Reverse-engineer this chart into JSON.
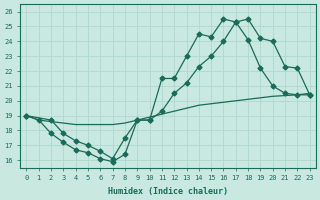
{
  "xlabel": "Humidex (Indice chaleur)",
  "xlim": [
    -0.5,
    23.5
  ],
  "ylim": [
    15.5,
    26.5
  ],
  "xticks": [
    0,
    1,
    2,
    3,
    4,
    5,
    6,
    7,
    8,
    9,
    10,
    11,
    12,
    13,
    14,
    15,
    16,
    17,
    18,
    19,
    20,
    21,
    22,
    23
  ],
  "yticks": [
    16,
    17,
    18,
    19,
    20,
    21,
    22,
    23,
    24,
    25,
    26
  ],
  "bg_color": "#c8e8e0",
  "grid_color": "#b0d8d0",
  "line_color": "#1a6b5a",
  "line1_x": [
    0,
    1,
    2,
    3,
    4,
    5,
    6,
    7,
    8,
    9,
    10,
    11,
    12,
    13,
    14,
    15,
    16,
    17,
    18,
    19,
    20,
    21,
    22,
    23
  ],
  "line1_y": [
    19.0,
    18.7,
    17.8,
    17.2,
    16.7,
    16.5,
    16.1,
    15.9,
    16.4,
    18.7,
    18.7,
    21.5,
    21.5,
    23.0,
    24.5,
    24.3,
    25.5,
    25.3,
    24.1,
    22.2,
    21.0,
    20.5,
    20.4,
    20.4
  ],
  "line2_x": [
    0,
    2,
    3,
    4,
    5,
    6,
    7,
    8,
    9,
    10,
    11,
    12,
    13,
    14,
    15,
    16,
    17,
    18,
    19,
    20,
    21,
    22,
    23
  ],
  "line2_y": [
    19.0,
    18.7,
    17.8,
    17.3,
    17.0,
    16.6,
    16.1,
    17.5,
    18.7,
    18.7,
    19.3,
    20.5,
    21.2,
    22.3,
    23.0,
    24.0,
    25.3,
    25.5,
    24.2,
    24.0,
    22.3,
    22.2,
    20.4
  ],
  "line3_x": [
    0,
    1,
    2,
    3,
    4,
    5,
    6,
    7,
    8,
    9,
    10,
    11,
    12,
    13,
    14,
    15,
    16,
    17,
    18,
    19,
    20,
    21,
    22,
    23
  ],
  "line3_y": [
    19.0,
    18.7,
    18.6,
    18.5,
    18.4,
    18.4,
    18.4,
    18.4,
    18.5,
    18.7,
    18.9,
    19.1,
    19.3,
    19.5,
    19.7,
    19.8,
    19.9,
    20.0,
    20.1,
    20.2,
    20.3,
    20.35,
    20.4,
    20.5
  ]
}
